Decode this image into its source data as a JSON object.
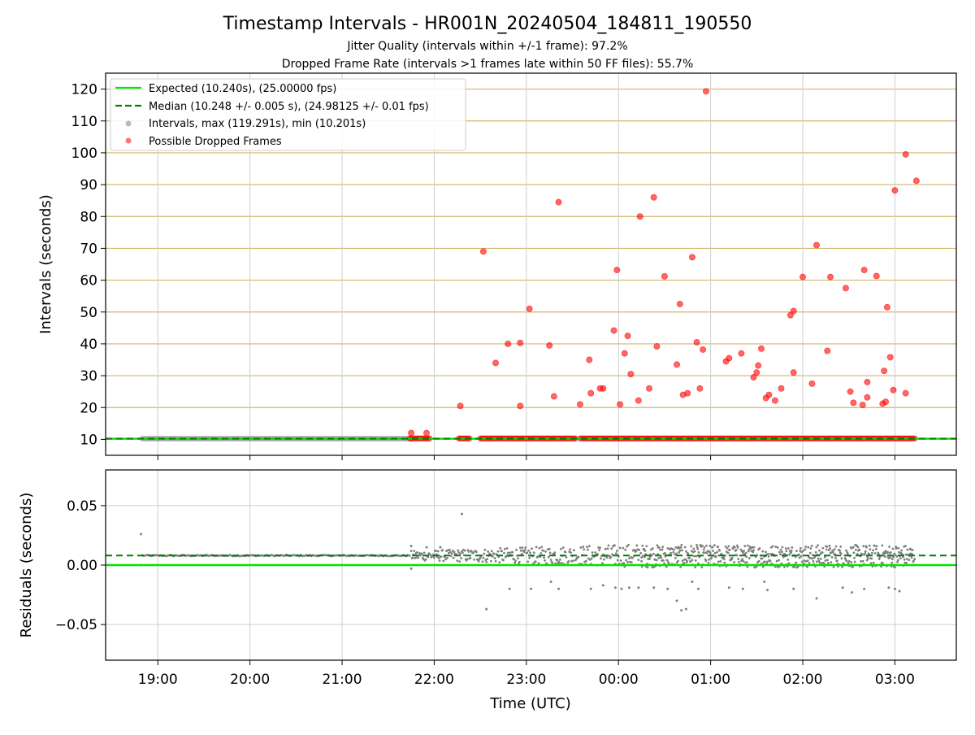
{
  "figure": {
    "title": "Timestamp Intervals - HR001N_20240504_184811_190550",
    "subtitle_1": "Jitter Quality (intervals within +/-1 frame): 97.2%",
    "subtitle_2": "Dropped Frame Rate (intervals >1 frames late within 50 FF files): 55.7%",
    "x_label": "Time (UTC)",
    "x_tick_labels": [
      "19:00",
      "20:00",
      "21:00",
      "22:00",
      "23:00",
      "00:00",
      "01:00",
      "02:00",
      "03:00"
    ]
  },
  "legend": {
    "position": "upper-left",
    "entries": [
      "Expected (10.240s), (25.00000 fps)",
      "Median (10.248 +/- 0.005 s), (24.98125 +/- 0.01 fps)",
      "Intervals, max (119.291s), min (10.201s)",
      "Possible Dropped Frames"
    ]
  },
  "colors": {
    "expected": "#00e600",
    "median": "#008000",
    "intervals": "#808080",
    "dropped": "#ff0000",
    "hgrid": "#d4b56a",
    "grid": "#cfcfcf"
  },
  "chart_data": [
    {
      "type": "scatter",
      "panel": "top",
      "ylabel": "Intervals (seconds)",
      "xlim": [
        "18:26",
        "03:40"
      ],
      "ylim": [
        5,
        125
      ],
      "y_ticks": [
        10,
        20,
        30,
        40,
        50,
        60,
        70,
        80,
        90,
        100,
        110,
        120
      ],
      "reference_lines": {
        "expected": 10.24,
        "median": 10.248
      },
      "interval_band": {
        "start": "18:50",
        "end": "21:45",
        "value": 10.24
      },
      "dropped_band": {
        "start": "21:44",
        "end": "03:13",
        "value": 10.3
      },
      "dropped_points": [
        {
          "x": "21:45",
          "y": 12
        },
        {
          "x": "21:55",
          "y": 12
        },
        {
          "x": "22:17",
          "y": 20.5
        },
        {
          "x": "22:32",
          "y": 69
        },
        {
          "x": "22:40",
          "y": 34
        },
        {
          "x": "22:48",
          "y": 40
        },
        {
          "x": "22:56",
          "y": 20.5
        },
        {
          "x": "22:56",
          "y": 40.3
        },
        {
          "x": "23:02",
          "y": 51
        },
        {
          "x": "23:15",
          "y": 39.5
        },
        {
          "x": "23:18",
          "y": 23.5
        },
        {
          "x": "23:21",
          "y": 84.5
        },
        {
          "x": "23:35",
          "y": 21
        },
        {
          "x": "23:41",
          "y": 35
        },
        {
          "x": "23:42",
          "y": 24.5
        },
        {
          "x": "23:48",
          "y": 26
        },
        {
          "x": "23:50",
          "y": 26
        },
        {
          "x": "23:57",
          "y": 44.2
        },
        {
          "x": "23:59",
          "y": 63.2
        },
        {
          "x": "00:01",
          "y": 21
        },
        {
          "x": "00:04",
          "y": 37
        },
        {
          "x": "00:06",
          "y": 42.5
        },
        {
          "x": "00:08",
          "y": 30.5
        },
        {
          "x": "00:13",
          "y": 22.2
        },
        {
          "x": "00:14",
          "y": 80
        },
        {
          "x": "00:20",
          "y": 26
        },
        {
          "x": "00:23",
          "y": 86
        },
        {
          "x": "00:25",
          "y": 39.2
        },
        {
          "x": "00:30",
          "y": 61.2
        },
        {
          "x": "00:38",
          "y": 33.5
        },
        {
          "x": "00:40",
          "y": 52.5
        },
        {
          "x": "00:42",
          "y": 24
        },
        {
          "x": "00:45",
          "y": 24.5
        },
        {
          "x": "00:48",
          "y": 67.2
        },
        {
          "x": "00:51",
          "y": 40.5
        },
        {
          "x": "00:53",
          "y": 26
        },
        {
          "x": "00:55",
          "y": 38.2
        },
        {
          "x": "00:57",
          "y": 119.3
        },
        {
          "x": "01:10",
          "y": 34.5
        },
        {
          "x": "01:12",
          "y": 35.5
        },
        {
          "x": "01:20",
          "y": 37
        },
        {
          "x": "01:28",
          "y": 29.5
        },
        {
          "x": "01:30",
          "y": 31
        },
        {
          "x": "01:31",
          "y": 33.2
        },
        {
          "x": "01:33",
          "y": 38.5
        },
        {
          "x": "01:36",
          "y": 23
        },
        {
          "x": "01:38",
          "y": 24
        },
        {
          "x": "01:42",
          "y": 22.2
        },
        {
          "x": "01:46",
          "y": 26
        },
        {
          "x": "01:52",
          "y": 49
        },
        {
          "x": "01:54",
          "y": 50.3
        },
        {
          "x": "01:54",
          "y": 31
        },
        {
          "x": "02:00",
          "y": 61
        },
        {
          "x": "02:06",
          "y": 27.5
        },
        {
          "x": "02:09",
          "y": 71
        },
        {
          "x": "02:16",
          "y": 37.8
        },
        {
          "x": "02:18",
          "y": 61
        },
        {
          "x": "02:28",
          "y": 57.5
        },
        {
          "x": "02:31",
          "y": 25
        },
        {
          "x": "02:33",
          "y": 21.5
        },
        {
          "x": "02:39",
          "y": 20.8
        },
        {
          "x": "02:40",
          "y": 63.2
        },
        {
          "x": "02:42",
          "y": 23.2
        },
        {
          "x": "02:42",
          "y": 28
        },
        {
          "x": "02:48",
          "y": 61.3
        },
        {
          "x": "02:52",
          "y": 21.2
        },
        {
          "x": "02:53",
          "y": 31.5
        },
        {
          "x": "02:54",
          "y": 21.8
        },
        {
          "x": "02:55",
          "y": 51.5
        },
        {
          "x": "02:57",
          "y": 35.8
        },
        {
          "x": "02:59",
          "y": 25.5
        },
        {
          "x": "03:00",
          "y": 88.2
        },
        {
          "x": "03:07",
          "y": 24.5
        },
        {
          "x": "03:07",
          "y": 99.5
        },
        {
          "x": "03:14",
          "y": 91.2
        }
      ]
    },
    {
      "type": "scatter",
      "panel": "bottom",
      "ylabel": "Residuals (seconds)",
      "xlim": [
        "18:26",
        "03:40"
      ],
      "ylim": [
        -0.08,
        0.08
      ],
      "y_ticks": [
        0.05,
        0.0,
        -0.05
      ],
      "y_tick_labels": [
        "0.05",
        "0.00",
        "−0.05"
      ],
      "reference_lines": {
        "expected": 0.0,
        "median": 0.008
      },
      "outlier_points": [
        {
          "x": "18:49",
          "y": 0.026
        },
        {
          "x": "18:49",
          "y": 0.0
        },
        {
          "x": "21:45",
          "y": -0.003
        },
        {
          "x": "21:45",
          "y": 0.016
        },
        {
          "x": "21:55",
          "y": 0.015
        },
        {
          "x": "22:04",
          "y": 0.015
        },
        {
          "x": "22:18",
          "y": 0.043
        },
        {
          "x": "22:34",
          "y": -0.037
        },
        {
          "x": "22:49",
          "y": -0.02
        },
        {
          "x": "23:03",
          "y": -0.02
        },
        {
          "x": "23:16",
          "y": -0.014
        },
        {
          "x": "23:21",
          "y": -0.02
        },
        {
          "x": "23:42",
          "y": -0.02
        },
        {
          "x": "23:50",
          "y": -0.017
        },
        {
          "x": "23:58",
          "y": -0.019
        },
        {
          "x": "00:02",
          "y": -0.02
        },
        {
          "x": "00:07",
          "y": -0.019
        },
        {
          "x": "00:13",
          "y": -0.019
        },
        {
          "x": "00:23",
          "y": -0.019
        },
        {
          "x": "00:32",
          "y": -0.02
        },
        {
          "x": "00:38",
          "y": -0.03
        },
        {
          "x": "00:41",
          "y": -0.038
        },
        {
          "x": "00:44",
          "y": -0.037
        },
        {
          "x": "00:48",
          "y": -0.014
        },
        {
          "x": "00:52",
          "y": -0.02
        },
        {
          "x": "01:12",
          "y": -0.019
        },
        {
          "x": "01:21",
          "y": -0.02
        },
        {
          "x": "01:35",
          "y": -0.014
        },
        {
          "x": "01:37",
          "y": -0.021
        },
        {
          "x": "01:54",
          "y": -0.02
        },
        {
          "x": "02:09",
          "y": -0.028
        },
        {
          "x": "02:26",
          "y": -0.019
        },
        {
          "x": "02:32",
          "y": -0.023
        },
        {
          "x": "02:40",
          "y": -0.02
        },
        {
          "x": "02:56",
          "y": -0.019
        },
        {
          "x": "03:00",
          "y": -0.02
        },
        {
          "x": "03:03",
          "y": -0.022
        },
        {
          "x": "03:12",
          "y": 0.0
        }
      ]
    }
  ]
}
